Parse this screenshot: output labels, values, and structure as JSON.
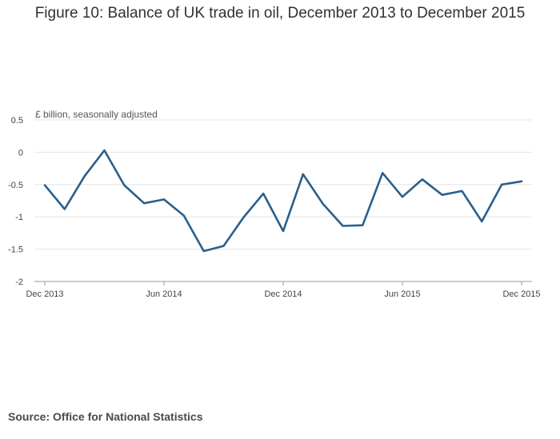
{
  "title": "Figure 10: Balance of UK trade in oil, December 2013 to December 2015",
  "source": "Source: Office for National Statistics",
  "chart_data": {
    "type": "line",
    "title": "Figure 10: Balance of UK trade in oil, December 2013 to December 2015",
    "ylabel": "£ billion, seasonally adjusted",
    "xlabel": "",
    "ylim": [
      -2,
      0.5
    ],
    "yticks": [
      0.5,
      0,
      -0.5,
      -1,
      -1.5,
      -2
    ],
    "ytick_labels": [
      "0.5",
      "0",
      "-0.5",
      "-1",
      "-1.5",
      "-2"
    ],
    "xtick_labels": [
      "Dec 2013",
      "Jun 2014",
      "Dec 2014",
      "Jun 2015",
      "Dec 2015"
    ],
    "xtick_positions": [
      0,
      6,
      12,
      18,
      24
    ],
    "grid": true,
    "legend": "none",
    "line_color": "#2a5f8c",
    "series": [
      {
        "x": [
          "Dec 2013",
          "Jan 2014",
          "Feb 2014",
          "Mar 2014",
          "Apr 2014",
          "May 2014",
          "Jun 2014",
          "Jul 2014",
          "Aug 2014",
          "Sep 2014",
          "Oct 2014",
          "Nov 2014",
          "Dec 2014",
          "Jan 2015",
          "Feb 2015",
          "Mar 2015",
          "Apr 2015",
          "May 2015",
          "Jun 2015",
          "Jul 2015",
          "Aug 2015",
          "Sep 2015",
          "Oct 2015",
          "Nov 2015",
          "Dec 2015"
        ],
        "values": [
          -0.51,
          -0.88,
          -0.37,
          0.03,
          -0.51,
          -0.79,
          -0.73,
          -0.98,
          -1.53,
          -1.45,
          -1.01,
          -0.64,
          -1.22,
          -0.34,
          -0.8,
          -1.14,
          -1.13,
          -0.32,
          -0.69,
          -0.42,
          -0.66,
          -0.6,
          -1.07,
          -0.5,
          -0.45
        ]
      }
    ]
  }
}
